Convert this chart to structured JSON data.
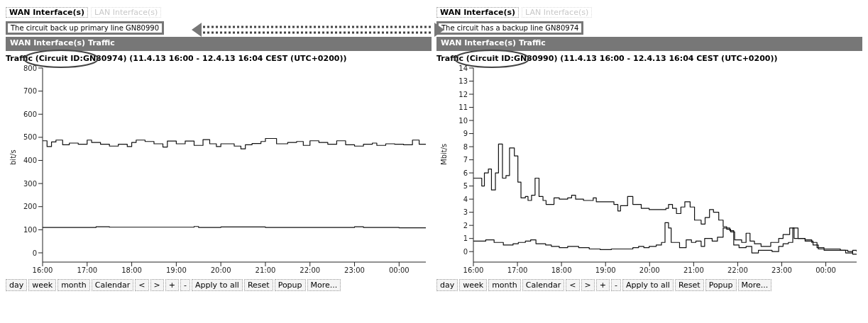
{
  "chart_data": [
    {
      "type": "step",
      "title": "Traffic (Circuit ID:GN80974) (11.4.13 16:00 - 12.4.13 16:04 CEST (UTC+0200))",
      "ylabel": "bit/s",
      "annotations": [
        "WAN Interface(s)",
        "LAN Interface(s)",
        "The circuit back up primary line GN80990",
        "WAN Interface(s) Traffic",
        "day",
        "week",
        "month",
        "Calendar",
        "<",
        ">",
        "+",
        "-",
        "Apply to all",
        "Reset",
        "Popup",
        "More..."
      ],
      "xlim": [
        16,
        24.6
      ],
      "xticks": [
        {
          "value": 16,
          "label": "16:00"
        },
        {
          "value": 17,
          "label": "17:00"
        },
        {
          "value": 18,
          "label": "18:00"
        },
        {
          "value": 19,
          "label": "19:00"
        },
        {
          "value": 20,
          "label": "20:00"
        },
        {
          "value": 21,
          "label": "21:00"
        },
        {
          "value": 22,
          "label": "22:00"
        },
        {
          "value": 23,
          "label": "23:00"
        },
        {
          "value": 24,
          "label": "00:00"
        }
      ],
      "ylim": [
        -40,
        800
      ],
      "yticks": [
        0,
        100,
        200,
        300,
        400,
        500,
        600,
        700,
        800
      ],
      "series": [
        {
          "color": "#111111",
          "x": [
            16.0,
            16.1,
            16.2,
            16.3,
            16.45,
            16.6,
            16.8,
            17.0,
            17.1,
            17.3,
            17.5,
            17.7,
            17.9,
            18.0,
            18.1,
            18.3,
            18.5,
            18.7,
            18.8,
            19.0,
            19.2,
            19.4,
            19.6,
            19.75,
            19.9,
            20.0,
            20.3,
            20.45,
            20.55,
            20.7,
            20.9,
            21.0,
            21.25,
            21.5,
            21.7,
            21.85,
            22.0,
            22.2,
            22.4,
            22.6,
            22.8,
            23.0,
            23.2,
            23.4,
            23.5,
            23.7,
            23.9,
            24.1,
            24.3,
            24.45,
            24.6
          ],
          "values": [
            485,
            460,
            480,
            488,
            468,
            475,
            470,
            488,
            478,
            470,
            462,
            470,
            460,
            478,
            488,
            482,
            472,
            458,
            484,
            472,
            484,
            465,
            490,
            472,
            460,
            472,
            462,
            450,
            468,
            473,
            482,
            495,
            472,
            478,
            482,
            465,
            485,
            478,
            470,
            485,
            468,
            462,
            470,
            475,
            465,
            472,
            470,
            468,
            488,
            470,
            470
          ]
        },
        {
          "color": "#111111",
          "x": [
            16.0,
            17.2,
            17.5,
            19.4,
            19.5,
            20.0,
            21.0,
            22.0,
            23.0,
            23.2,
            24.0,
            24.6
          ],
          "values": [
            110,
            113,
            111,
            114,
            110,
            112,
            110,
            110,
            113,
            110,
            108,
            108
          ]
        }
      ]
    },
    {
      "type": "step",
      "title": "Traffic (Circuit ID:GN80990) (11.4.13 16:00 - 12.4.13 16:04 CEST (UTC+0200))",
      "ylabel": "Mbit/s",
      "annotations": [
        "WAN Interface(s)",
        "LAN Interface(s)",
        "The circuit has a backup line GN80974",
        "WAN Interface(s) Traffic",
        "day",
        "week",
        "month",
        "Calendar",
        "<",
        ">",
        "+",
        "-",
        "Apply to all",
        "Reset",
        "Popup",
        "More..."
      ],
      "xlim": [
        16,
        24.7
      ],
      "xticks": [
        {
          "value": 16,
          "label": "16:00"
        },
        {
          "value": 17,
          "label": "17:00"
        },
        {
          "value": 18,
          "label": "18:00"
        },
        {
          "value": 19,
          "label": "19:00"
        },
        {
          "value": 20,
          "label": "20:00"
        },
        {
          "value": 21,
          "label": "21:00"
        },
        {
          "value": 22,
          "label": "22:00"
        },
        {
          "value": 23,
          "label": "23:00"
        },
        {
          "value": 24,
          "label": "00:00"
        }
      ],
      "ylim": [
        -0.8,
        14
      ],
      "yticks": [
        0,
        1,
        2,
        3,
        4,
        5,
        6,
        7,
        8,
        9,
        10,
        11,
        12,
        13,
        14
      ],
      "series": [
        {
          "color": "#111111",
          "x": [
            16.0,
            16.19,
            16.25,
            16.34,
            16.41,
            16.5,
            16.57,
            16.66,
            16.74,
            16.82,
            16.93,
            17.01,
            17.08,
            17.18,
            17.24,
            17.32,
            17.4,
            17.49,
            17.58,
            17.65,
            17.83,
            17.95,
            18.14,
            18.23,
            18.32,
            18.5,
            18.72,
            18.79,
            19.0,
            19.19,
            19.28,
            19.34,
            19.5,
            19.62,
            19.81,
            19.99,
            20.18,
            20.37,
            20.43,
            20.52,
            20.61,
            20.71,
            20.8,
            20.92,
            21.02,
            21.17,
            21.26,
            21.36,
            21.45,
            21.57,
            21.67,
            21.75,
            21.84,
            21.93,
            22.09,
            22.19,
            22.28,
            22.38,
            22.53,
            22.75,
            22.93,
            23.03,
            23.18,
            23.28,
            23.53,
            23.71,
            23.83,
            24.08,
            24.33,
            24.45,
            24.61,
            24.7
          ],
          "values": [
            5.6,
            5.0,
            6.0,
            6.3,
            4.7,
            6.0,
            8.2,
            5.6,
            5.8,
            7.9,
            7.3,
            5.3,
            4.1,
            4.2,
            3.9,
            4.3,
            5.6,
            4.2,
            3.9,
            3.6,
            4.1,
            4.0,
            4.1,
            4.3,
            4.0,
            3.9,
            4.1,
            3.8,
            3.8,
            3.6,
            3.1,
            3.5,
            4.2,
            3.6,
            3.3,
            3.2,
            3.2,
            3.3,
            3.6,
            3.3,
            2.9,
            3.4,
            3.8,
            3.4,
            2.4,
            2.1,
            2.6,
            3.2,
            3.0,
            2.4,
            1.9,
            1.7,
            1.5,
            0.9,
            0.7,
            1.4,
            0.8,
            0.6,
            0.4,
            0.7,
            1.0,
            1.3,
            1.8,
            1.0,
            0.8,
            0.5,
            0.2,
            0.2,
            0.1,
            -0.1,
            0.1,
            0.0
          ]
        },
        {
          "color": "#111111",
          "x": [
            16.0,
            16.28,
            16.47,
            16.68,
            16.9,
            17.02,
            17.18,
            17.3,
            17.42,
            17.64,
            17.77,
            17.95,
            18.14,
            18.39,
            18.63,
            18.88,
            19.13,
            19.37,
            19.62,
            19.75,
            19.87,
            19.99,
            20.15,
            20.27,
            20.35,
            20.43,
            20.49,
            20.68,
            20.83,
            20.95,
            21.05,
            21.17,
            21.25,
            21.42,
            21.54,
            21.67,
            21.82,
            21.91,
            22.03,
            22.19,
            22.32,
            22.47,
            22.78,
            22.93,
            23.03,
            23.15,
            23.25,
            23.37,
            23.53,
            23.68,
            23.8,
            23.96,
            24.33,
            24.5,
            24.61,
            24.7
          ],
          "values": [
            0.8,
            0.9,
            0.7,
            0.5,
            0.6,
            0.7,
            0.8,
            0.9,
            0.6,
            0.5,
            0.4,
            0.3,
            0.4,
            0.3,
            0.2,
            0.15,
            0.2,
            0.2,
            0.3,
            0.4,
            0.3,
            0.4,
            0.5,
            0.7,
            2.2,
            1.8,
            0.7,
            0.3,
            0.9,
            0.7,
            0.8,
            0.4,
            1.0,
            0.8,
            1.1,
            1.8,
            1.6,
            0.5,
            0.3,
            0.4,
            -0.1,
            0.1,
            0.0,
            0.4,
            0.6,
            0.7,
            1.8,
            1.0,
            0.9,
            0.7,
            0.3,
            0.1,
            0.1,
            0.0,
            -0.2,
            -0.2
          ]
        }
      ]
    }
  ]
}
